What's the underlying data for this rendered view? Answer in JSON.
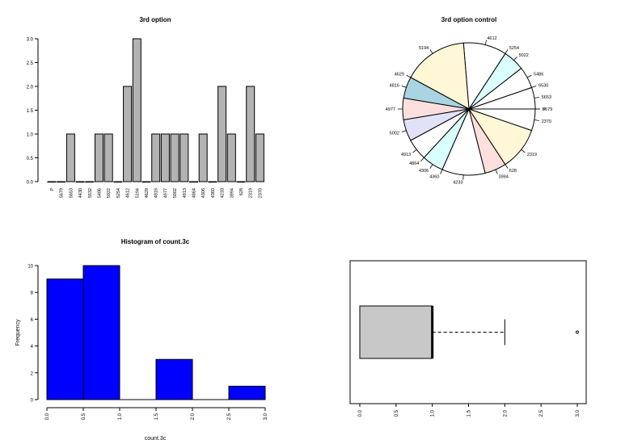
{
  "chart_data": [
    {
      "type": "bar",
      "title": "3rd option",
      "categories": [
        "P",
        "5679",
        "5653",
        "4430",
        "5532",
        "5486",
        "5022",
        "5254",
        "4612",
        "5194",
        "4629",
        "4816",
        "4977",
        "5002",
        "4913",
        "4864",
        "4306",
        "4360",
        "4233",
        "3994",
        "628",
        "2319",
        "2370"
      ],
      "values": [
        0,
        0,
        1,
        0,
        0,
        1,
        1,
        0,
        2,
        3,
        0,
        1,
        1,
        1,
        1,
        0,
        1,
        0,
        2,
        1,
        0,
        2,
        1
      ],
      "ylim": [
        0,
        3
      ],
      "yticks": [
        "0.0",
        "0.5",
        "1.0",
        "1.5",
        "2.0",
        "2.5",
        "3.0"
      ],
      "colors": {
        "bar": "#b3b3b3"
      }
    },
    {
      "type": "pie",
      "title": "3rd option control",
      "labels": [
        "P",
        "5679",
        "5653",
        "6530",
        "5486",
        "5022",
        "5254",
        "4612",
        "5194",
        "4629",
        "4816",
        "4977",
        "5002",
        "4913",
        "4864",
        "4306",
        "4360",
        "4233",
        "3994",
        "628",
        "2319",
        "2370"
      ],
      "values": [
        0.0001,
        0.0001,
        1,
        0.0001,
        1,
        1,
        0.0001,
        2,
        3,
        0.0001,
        1,
        1,
        1,
        1,
        0.0001,
        1,
        0.0001,
        2,
        1,
        0.0001,
        2,
        1
      ],
      "palette": [
        "#ffffff",
        "#fde0dd",
        "#ffffff",
        "#fff7d6",
        "#ffffff",
        "#d9ffff",
        "#ffe0e0",
        "#ffffff",
        "#fff7d6",
        "#ffffff",
        "#a9d4e1",
        "#fde0dd",
        "#e1e1f8",
        "#ffffff",
        "#a9d4e1",
        "#d9ffff",
        "#e1e1f8"
      ]
    },
    {
      "type": "histogram",
      "title": "Histogram of count.3c",
      "xlabel": "count.3c",
      "ylabel": "Frequency",
      "bins": [
        {
          "start": 0.0,
          "end": 0.5,
          "count": 9
        },
        {
          "start": 0.5,
          "end": 1.0,
          "count": 10
        },
        {
          "start": 1.0,
          "end": 1.5,
          "count": 0
        },
        {
          "start": 1.5,
          "end": 2.0,
          "count": 3
        },
        {
          "start": 2.0,
          "end": 2.5,
          "count": 0
        },
        {
          "start": 2.5,
          "end": 3.0,
          "count": 1
        }
      ],
      "xticks": [
        "0.0",
        "0.5",
        "1.0",
        "1.5",
        "2.0",
        "2.5",
        "3.0"
      ],
      "yticks": [
        "0",
        "2",
        "4",
        "6",
        "8",
        "10"
      ],
      "ylim": [
        0,
        10
      ],
      "colors": {
        "bar": "#0000ff"
      }
    },
    {
      "type": "boxplot",
      "orientation": "horizontal",
      "stats": {
        "min": 0,
        "q1": 0,
        "median": 1,
        "q3": 1,
        "whisker_high": 2,
        "outliers": [
          3
        ]
      },
      "xlim": [
        0,
        3
      ],
      "xticks": [
        "0.0",
        "0.5",
        "1.0",
        "1.5",
        "2.0",
        "2.5",
        "3.0"
      ],
      "colors": {
        "box": "#c8c8c8"
      }
    }
  ]
}
